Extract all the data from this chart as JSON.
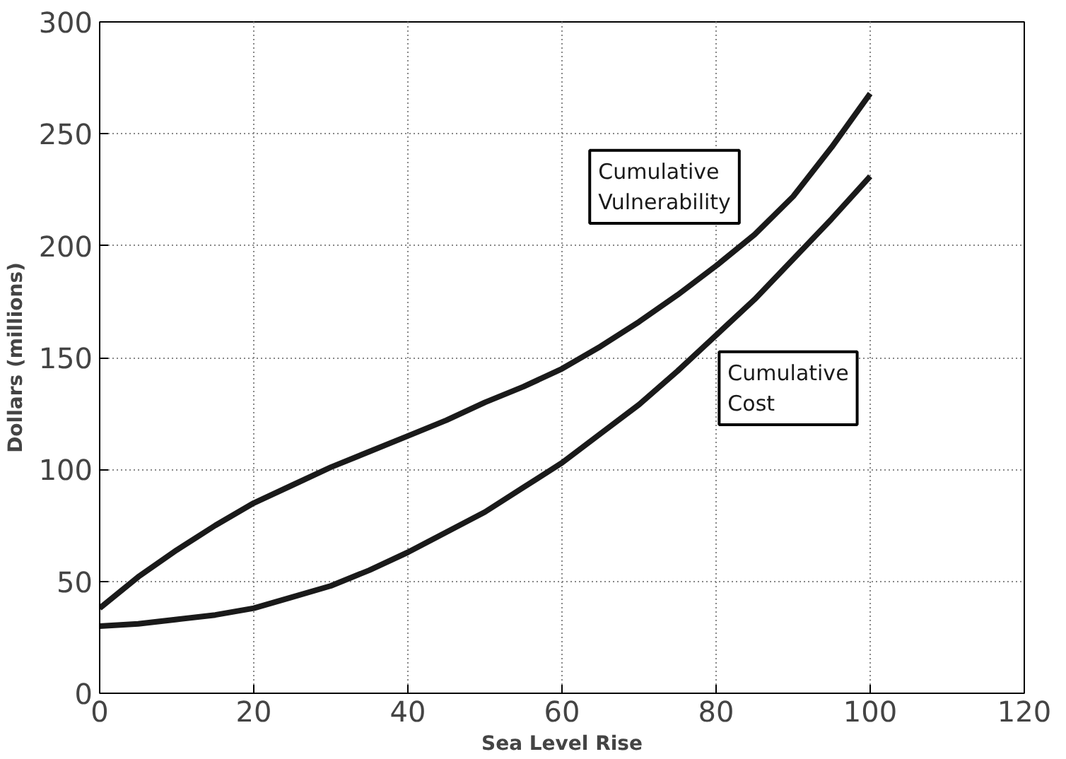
{
  "chart_data": {
    "type": "line",
    "xlabel": "Sea Level Rise",
    "ylabel": "Dollars (millions)",
    "x": [
      0,
      5,
      10,
      15,
      20,
      25,
      30,
      35,
      40,
      45,
      50,
      55,
      60,
      65,
      70,
      75,
      80,
      85,
      90,
      95,
      100
    ],
    "series": [
      {
        "name": "Cumulative\nVulnerability",
        "color": "#1a1a1a",
        "values": [
          38,
          52,
          64,
          75,
          85,
          93,
          101,
          108,
          115,
          122,
          130,
          137,
          145,
          155,
          166,
          178,
          191,
          205,
          222,
          244,
          268
        ]
      },
      {
        "name": "Cumulative\nCost",
        "color": "#1a1a1a",
        "values": [
          30,
          31,
          33,
          35,
          38,
          43,
          48,
          55,
          63,
          72,
          81,
          92,
          103,
          116,
          129,
          144,
          160,
          176,
          194,
          212,
          231
        ]
      }
    ],
    "xlim": [
      0,
      120
    ],
    "ylim": [
      0,
      300
    ],
    "xticks": [
      0,
      20,
      40,
      60,
      80,
      100,
      120
    ],
    "yticks": [
      0,
      50,
      100,
      150,
      200,
      250,
      300
    ],
    "grid": true,
    "line_style": "solid"
  }
}
